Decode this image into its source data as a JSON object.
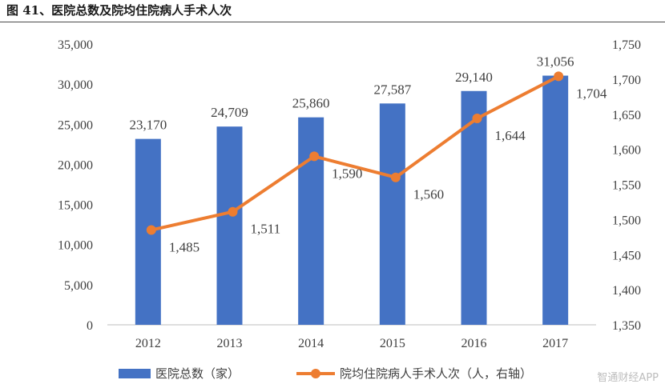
{
  "figure": {
    "title": "图 41、医院总数及院均住院病人手术人次",
    "watermark": "智通财经APP"
  },
  "chart_data": {
    "type": "bar",
    "categories": [
      "2012",
      "2013",
      "2014",
      "2015",
      "2016",
      "2017"
    ],
    "series": [
      {
        "name": "医院总数（家）",
        "type": "bar",
        "axis": "left",
        "color": "#4472C4",
        "values": [
          23170,
          24709,
          25860,
          27587,
          29140,
          31056
        ],
        "labels": [
          "23,170",
          "24,709",
          "25,860",
          "27,587",
          "29,140",
          "31,056"
        ]
      },
      {
        "name": "院均住院病人手术人次（人，右轴）",
        "type": "line",
        "axis": "right",
        "color": "#ED7D31",
        "values": [
          1485,
          1511,
          1590,
          1560,
          1644,
          1704
        ],
        "labels": [
          "1,485",
          "1,511",
          "1,590",
          "1,560",
          "1,644",
          "1,704"
        ]
      }
    ],
    "y_left": {
      "ylim": [
        0,
        35000
      ],
      "ticks": [
        0,
        5000,
        10000,
        15000,
        20000,
        25000,
        30000,
        35000
      ],
      "tick_labels": [
        "0",
        "5,000",
        "10,000",
        "15,000",
        "20,000",
        "25,000",
        "30,000",
        "35,000"
      ]
    },
    "y_right": {
      "ylim": [
        1350,
        1750
      ],
      "ticks": [
        1350,
        1400,
        1450,
        1500,
        1550,
        1600,
        1650,
        1700,
        1750
      ],
      "tick_labels": [
        "1,350",
        "1,400",
        "1,450",
        "1,500",
        "1,550",
        "1,600",
        "1,650",
        "1,700",
        "1,750"
      ]
    },
    "grid": false,
    "legend_position": "bottom"
  }
}
